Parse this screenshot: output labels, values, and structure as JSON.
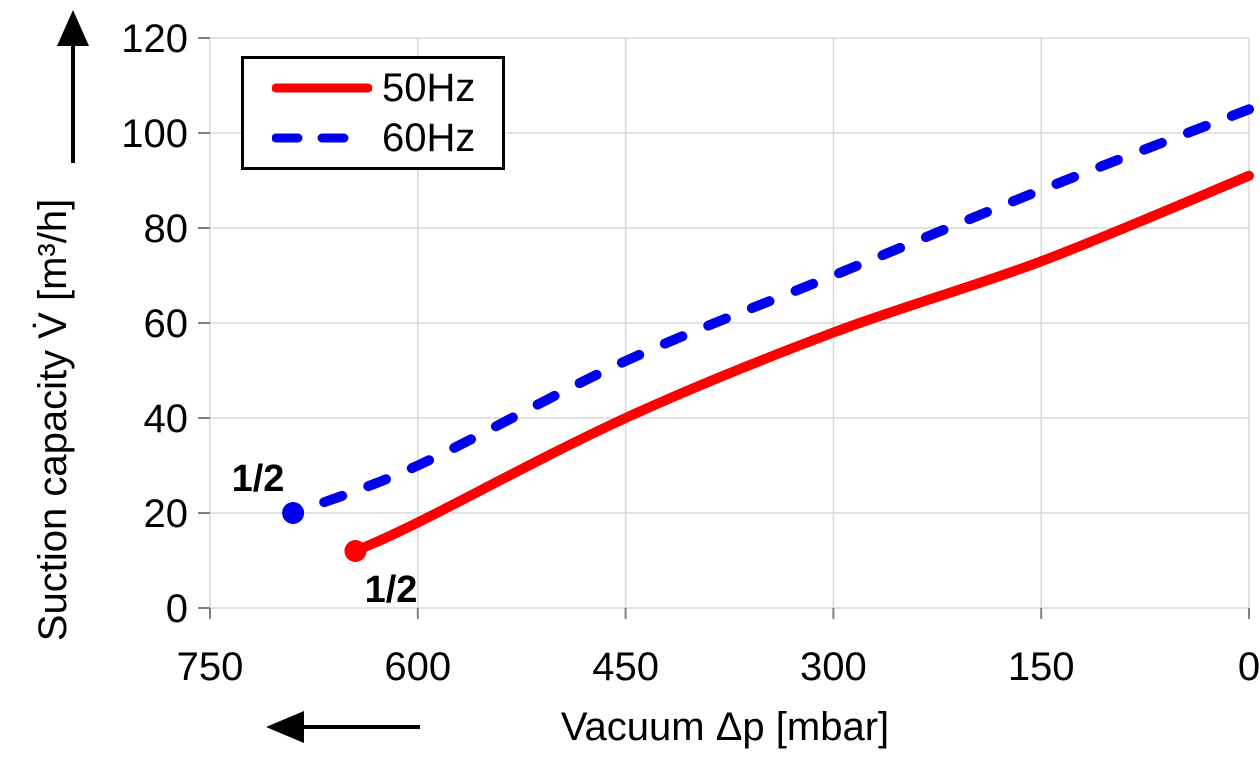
{
  "chart_data": {
    "type": "line",
    "xlabel": "Vacuum Δp [mbar]",
    "ylabel": "Suction capacity V̇ [m³/h]",
    "x_axis": {
      "min": 0,
      "max": 750,
      "reversed": true,
      "ticks": [
        750,
        600,
        450,
        300,
        150,
        0
      ]
    },
    "y_axis": {
      "min": 0,
      "max": 120,
      "ticks": [
        0,
        20,
        40,
        60,
        80,
        100,
        120
      ]
    },
    "grid": true,
    "legend": {
      "position": "top-left",
      "entries": [
        "50Hz",
        "60Hz"
      ]
    },
    "series": [
      {
        "name": "50Hz",
        "color": "#ff0000",
        "line_style": "solid",
        "start_marker": true,
        "points": [
          [
            645,
            12
          ],
          [
            600,
            18
          ],
          [
            450,
            40
          ],
          [
            300,
            58
          ],
          [
            150,
            73
          ],
          [
            0,
            91
          ]
        ]
      },
      {
        "name": "60Hz",
        "color": "#0000ee",
        "line_style": "dashed",
        "start_marker": true,
        "points": [
          [
            690,
            20
          ],
          [
            600,
            30
          ],
          [
            450,
            52
          ],
          [
            300,
            70
          ],
          [
            150,
            88
          ],
          [
            0,
            105
          ]
        ]
      }
    ],
    "annotations": [
      {
        "label": "1/2",
        "series": "60Hz",
        "color": "#0000ee"
      },
      {
        "label": "1/2",
        "series": "50Hz",
        "color": "#ff0000"
      }
    ]
  },
  "icons": {
    "y_axis_direction": "arrow-up-icon",
    "x_axis_direction": "arrow-left-icon"
  },
  "colors": {
    "background": "#ffffff",
    "grid": "#d9d9d9",
    "tick": "#808080",
    "text": "#000000",
    "legend_border": "#000000"
  }
}
